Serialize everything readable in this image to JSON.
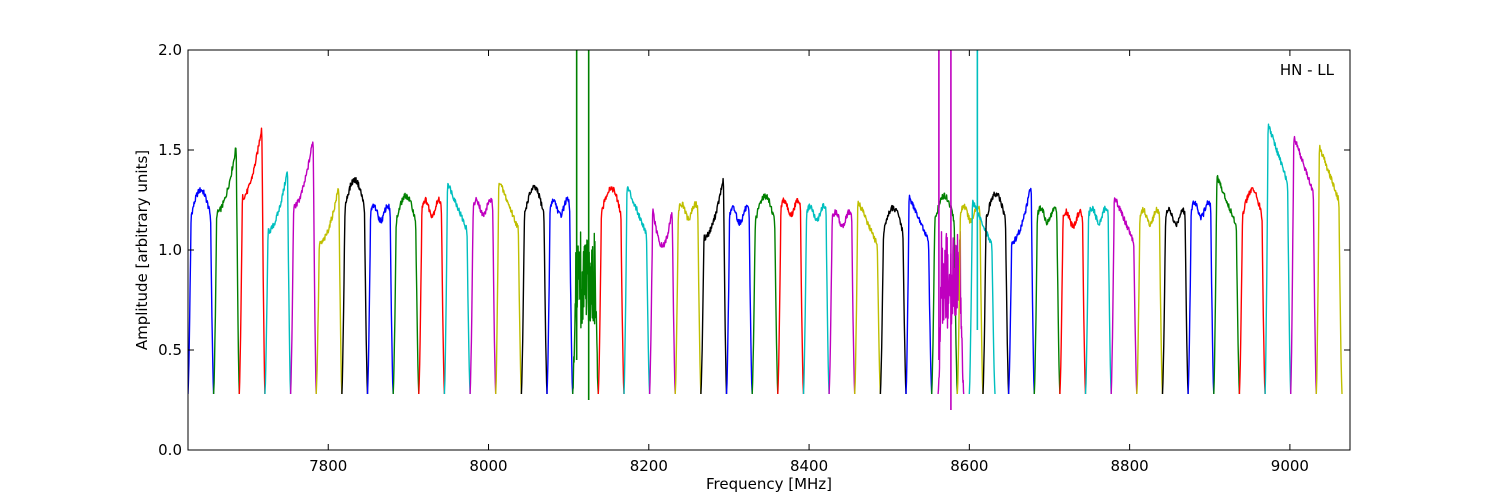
{
  "chart_data": {
    "type": "line",
    "title": "",
    "xlabel": "Frequency [MHz]",
    "ylabel": "Amplitude [arbitrary units]",
    "annotation": "HN - LL",
    "xlim": [
      7625,
      9075
    ],
    "ylim": [
      0.0,
      2.0
    ],
    "xticks": [
      7800,
      8000,
      8200,
      8400,
      8600,
      8800,
      9000
    ],
    "xtick_labels": [
      "7800",
      "8000",
      "8200",
      "8400",
      "8600",
      "8800",
      "9000"
    ],
    "yticks": [
      0.0,
      0.5,
      1.0,
      1.5,
      2.0
    ],
    "ytick_labels": [
      "0.0",
      "0.5",
      "1.0",
      "1.5",
      "2.0"
    ],
    "grid": false,
    "band_width_mhz": 32,
    "colors": [
      "#0000ff",
      "#008000",
      "#ff0000",
      "#00bfbf",
      "#bf00bf",
      "#bfbf00",
      "#000000"
    ],
    "bands": [
      {
        "start": 7625,
        "peak": 1.3,
        "shape": "rounded",
        "color": "#0000ff"
      },
      {
        "start": 7657,
        "peak": 1.52,
        "shape": "rising",
        "color": "#008000"
      },
      {
        "start": 7689,
        "peak": 1.62,
        "shape": "rising",
        "color": "#ff0000"
      },
      {
        "start": 7721,
        "peak": 1.4,
        "shape": "rising",
        "color": "#00bfbf"
      },
      {
        "start": 7753,
        "peak": 1.56,
        "shape": "rising",
        "color": "#bf00bf"
      },
      {
        "start": 7785,
        "peak": 1.32,
        "shape": "rising",
        "color": "#bfbf00"
      },
      {
        "start": 7817,
        "peak": 1.35,
        "shape": "rounded",
        "color": "#000000"
      },
      {
        "start": 7849,
        "peak": 1.22,
        "shape": "flat",
        "color": "#0000ff"
      },
      {
        "start": 7881,
        "peak": 1.27,
        "shape": "rounded",
        "color": "#008000"
      },
      {
        "start": 7913,
        "peak": 1.25,
        "shape": "flat",
        "color": "#ff0000"
      },
      {
        "start": 7945,
        "peak": 1.34,
        "shape": "falling",
        "color": "#00bfbf"
      },
      {
        "start": 7977,
        "peak": 1.25,
        "shape": "flat",
        "color": "#bf00bf"
      },
      {
        "start": 8009,
        "peak": 1.35,
        "shape": "falling",
        "color": "#bfbf00"
      },
      {
        "start": 8041,
        "peak": 1.31,
        "shape": "rounded",
        "color": "#000000"
      },
      {
        "start": 8073,
        "peak": 1.25,
        "shape": "flat",
        "color": "#0000ff"
      },
      {
        "start": 8105,
        "peak": 1.1,
        "shape": "noisy",
        "color": "#008000"
      },
      {
        "start": 8137,
        "peak": 1.31,
        "shape": "rounded",
        "color": "#ff0000"
      },
      {
        "start": 8169,
        "peak": 1.32,
        "shape": "falling",
        "color": "#00bfbf"
      },
      {
        "start": 8201,
        "peak": 1.2,
        "shape": "dip",
        "color": "#bf00bf"
      },
      {
        "start": 8233,
        "peak": 1.23,
        "shape": "flat",
        "color": "#bfbf00"
      },
      {
        "start": 8265,
        "peak": 1.36,
        "shape": "rising",
        "color": "#000000"
      },
      {
        "start": 8297,
        "peak": 1.21,
        "shape": "flat",
        "color": "#0000ff"
      },
      {
        "start": 8329,
        "peak": 1.27,
        "shape": "rounded",
        "color": "#008000"
      },
      {
        "start": 8361,
        "peak": 1.25,
        "shape": "flat",
        "color": "#ff0000"
      },
      {
        "start": 8393,
        "peak": 1.22,
        "shape": "flat",
        "color": "#00bfbf"
      },
      {
        "start": 8425,
        "peak": 1.19,
        "shape": "flat",
        "color": "#bf00bf"
      },
      {
        "start": 8457,
        "peak": 1.25,
        "shape": "falling",
        "color": "#bfbf00"
      },
      {
        "start": 8489,
        "peak": 1.21,
        "shape": "rounded",
        "color": "#000000"
      },
      {
        "start": 8521,
        "peak": 1.27,
        "shape": "falling",
        "color": "#0000ff"
      },
      {
        "start": 8553,
        "peak": 1.27,
        "shape": "rounded",
        "color": "#008000"
      },
      {
        "start": 8561,
        "peak": 1.1,
        "shape": "noisy",
        "color": "#bf00bf"
      },
      {
        "start": 8585,
        "peak": 1.22,
        "shape": "flat",
        "color": "#bfbf00"
      },
      {
        "start": 8600,
        "peak": 1.25,
        "shape": "falling",
        "color": "#00bfbf"
      },
      {
        "start": 8617,
        "peak": 1.28,
        "shape": "rounded",
        "color": "#000000"
      },
      {
        "start": 8649,
        "peak": 1.33,
        "shape": "rising",
        "color": "#0000ff"
      },
      {
        "start": 8681,
        "peak": 1.21,
        "shape": "flat",
        "color": "#008000"
      },
      {
        "start": 8713,
        "peak": 1.19,
        "shape": "flat",
        "color": "#ff0000"
      },
      {
        "start": 8745,
        "peak": 1.21,
        "shape": "flat",
        "color": "#00bfbf"
      },
      {
        "start": 8777,
        "peak": 1.27,
        "shape": "falling",
        "color": "#bf00bf"
      },
      {
        "start": 8809,
        "peak": 1.2,
        "shape": "flat",
        "color": "#bfbf00"
      },
      {
        "start": 8841,
        "peak": 1.2,
        "shape": "flat",
        "color": "#000000"
      },
      {
        "start": 8873,
        "peak": 1.24,
        "shape": "flat",
        "color": "#0000ff"
      },
      {
        "start": 8905,
        "peak": 1.37,
        "shape": "falling",
        "color": "#008000"
      },
      {
        "start": 8937,
        "peak": 1.3,
        "shape": "rounded",
        "color": "#ff0000"
      },
      {
        "start": 8969,
        "peak": 1.63,
        "shape": "falling",
        "color": "#00bfbf"
      },
      {
        "start": 9001,
        "peak": 1.57,
        "shape": "falling",
        "color": "#bf00bf"
      },
      {
        "start": 9033,
        "peak": 1.52,
        "shape": "falling",
        "color": "#bfbf00"
      }
    ],
    "spikes": [
      {
        "x": 8110,
        "y_from": 0.45,
        "y_to": 2.0,
        "color": "#008000"
      },
      {
        "x": 8125,
        "y_from": 0.25,
        "y_to": 2.0,
        "color": "#008000"
      },
      {
        "x": 8562,
        "y_from": 0.45,
        "y_to": 2.0,
        "color": "#bf00bf"
      },
      {
        "x": 8577,
        "y_from": 0.2,
        "y_to": 2.0,
        "color": "#bf00bf"
      },
      {
        "x": 8610,
        "y_from": 0.6,
        "y_to": 2.0,
        "color": "#00bfbf"
      }
    ]
  }
}
